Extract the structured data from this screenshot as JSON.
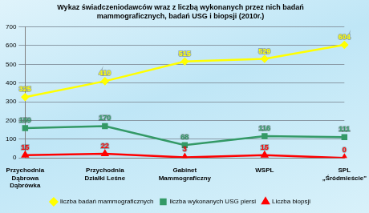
{
  "chart_data": {
    "type": "line",
    "title": [
      "Wykaz świadczeniodawców wraz z liczbą wykonanych przez nich badań",
      "mammograficznych, badań USG i biopsji (2010r.)"
    ],
    "categories": [
      [
        "Przychodnia",
        "Dąbrowa",
        "Dąbrówka"
      ],
      [
        "Przychodnia",
        "Działki Leśne"
      ],
      [
        "Gabinet",
        "Mammograficzny"
      ],
      [
        "WSPL"
      ],
      [
        "SPL",
        "„Śródmieście\""
      ]
    ],
    "series": [
      {
        "name": "liczba badań mammograficznych",
        "color": "#ffff00",
        "marker": "diamond",
        "values": [
          325,
          410,
          515,
          529,
          604
        ]
      },
      {
        "name": "liczba wykonanych USG piersi",
        "color": "#339966",
        "marker": "square",
        "values": [
          159,
          170,
          68,
          116,
          111
        ]
      },
      {
        "name": "Liczba biopsji",
        "color": "#ff0000",
        "marker": "triangle",
        "values": [
          15,
          22,
          3,
          15,
          0
        ]
      }
    ],
    "ylim": [
      0,
      700
    ],
    "yticks": [
      0,
      100,
      200,
      300,
      400,
      500,
      600,
      700
    ],
    "grid": true,
    "legend": "bottom",
    "data_labels": true
  }
}
